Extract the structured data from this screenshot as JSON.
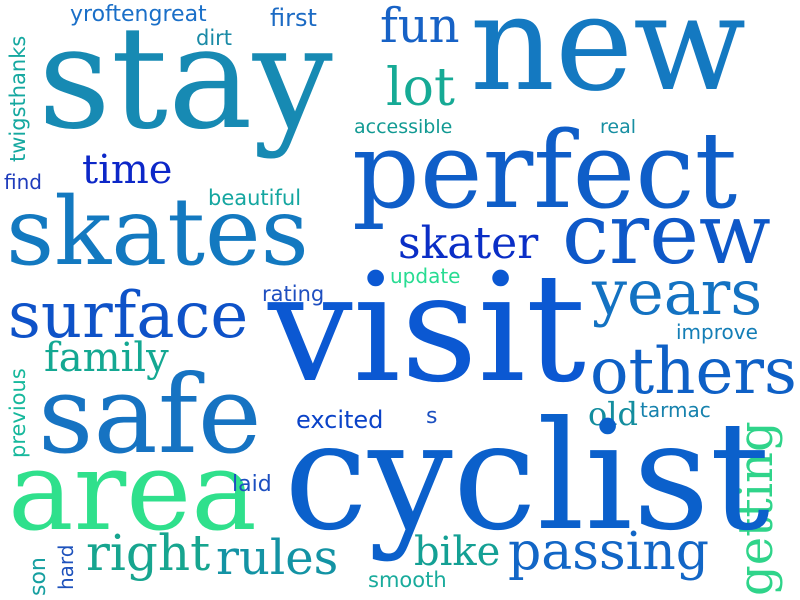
{
  "words": [
    {
      "text": "yroftengreat",
      "color": "#1a6fc8"
    },
    {
      "text": "first",
      "color": "#1c6bc4"
    },
    {
      "text": "fun",
      "color": "#1762c6"
    },
    {
      "text": "new",
      "color": "#1479c1"
    },
    {
      "text": "dirt",
      "color": "#1a8aa6"
    },
    {
      "text": "twigsthanks",
      "color": "#15a8a0"
    },
    {
      "text": "stay",
      "color": "#178ab3"
    },
    {
      "text": "lot",
      "color": "#16aa95"
    },
    {
      "text": "accessible",
      "color": "#129a93"
    },
    {
      "text": "real",
      "color": "#178fa2"
    },
    {
      "text": "perfect",
      "color": "#0f5ec8"
    },
    {
      "text": "time",
      "color": "#0c27c8"
    },
    {
      "text": "find",
      "color": "#1f3cbc"
    },
    {
      "text": "beautiful",
      "color": "#14a6a0"
    },
    {
      "text": "skates",
      "color": "#1379c0"
    },
    {
      "text": "skater",
      "color": "#0a2ec6"
    },
    {
      "text": "crew",
      "color": "#0e58c8"
    },
    {
      "text": "update",
      "color": "#28dc92"
    },
    {
      "text": "years",
      "color": "#1372c2"
    },
    {
      "text": "rating",
      "color": "#1f4fc0"
    },
    {
      "text": "surface",
      "color": "#0e52c8"
    },
    {
      "text": "visit",
      "color": "#0b58d2"
    },
    {
      "text": "improve",
      "color": "#147eb6"
    },
    {
      "text": "previous",
      "color": "#17b89c"
    },
    {
      "text": "family",
      "color": "#14a892"
    },
    {
      "text": "others",
      "color": "#0e60c6"
    },
    {
      "text": "safe",
      "color": "#1673c2"
    },
    {
      "text": "excited",
      "color": "#0b43c8"
    },
    {
      "text": "s",
      "color": "#1b4fc0"
    },
    {
      "text": "old",
      "color": "#138d9e"
    },
    {
      "text": "tarmac",
      "color": "#1782ad"
    },
    {
      "text": "getting",
      "color": "#2fd48a"
    },
    {
      "text": "area",
      "color": "#2fe08c"
    },
    {
      "text": "laid",
      "color": "#1c4fc0"
    },
    {
      "text": "cyclist",
      "color": "#0b60cb"
    },
    {
      "text": "son",
      "color": "#169fa0"
    },
    {
      "text": "hard",
      "color": "#1e52bc"
    },
    {
      "text": "right",
      "color": "#17a58f"
    },
    {
      "text": "rules",
      "color": "#1393a4"
    },
    {
      "text": "bike",
      "color": "#14a094"
    },
    {
      "text": "passing",
      "color": "#1266c6"
    },
    {
      "text": "smooth",
      "color": "#19ab9c"
    }
  ]
}
